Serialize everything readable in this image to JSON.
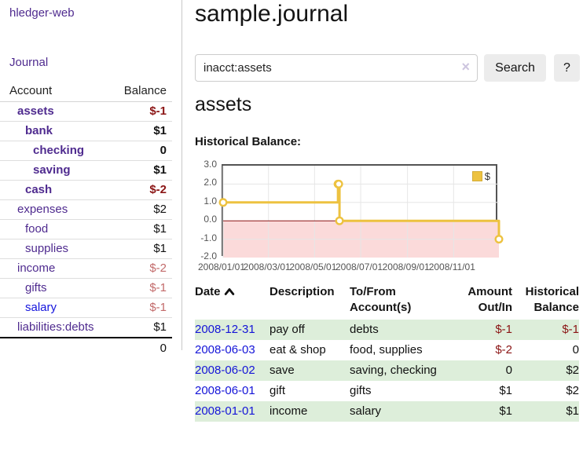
{
  "app": {
    "brand": "hledger-web",
    "nav_journal": "Journal"
  },
  "sidebar": {
    "header": {
      "account": "Account",
      "balance": "Balance"
    },
    "accounts": [
      {
        "name": "assets",
        "depth": 1,
        "bold": true,
        "balance": "$-1",
        "negative": true,
        "link": "purple"
      },
      {
        "name": "bank",
        "depth": 2,
        "bold": true,
        "balance": "$1",
        "negative": false,
        "link": "purple"
      },
      {
        "name": "checking",
        "depth": 3,
        "bold": true,
        "balance": "0",
        "negative": false,
        "link": "purple"
      },
      {
        "name": "saving",
        "depth": 3,
        "bold": true,
        "balance": "$1",
        "negative": false,
        "link": "purple"
      },
      {
        "name": "cash",
        "depth": 2,
        "bold": true,
        "balance": "$-2",
        "negative": true,
        "link": "purple"
      },
      {
        "name": "expenses",
        "depth": 1,
        "bold": false,
        "balance": "$2",
        "negative": false,
        "link": "purple"
      },
      {
        "name": "food",
        "depth": 2,
        "bold": false,
        "balance": "$1",
        "negative": false,
        "link": "purple"
      },
      {
        "name": "supplies",
        "depth": 2,
        "bold": false,
        "balance": "$1",
        "negative": false,
        "link": "purple"
      },
      {
        "name": "income",
        "depth": 1,
        "bold": false,
        "balance": "$-2",
        "negative": true,
        "link": "purple"
      },
      {
        "name": "gifts",
        "depth": 2,
        "bold": false,
        "balance": "$-1",
        "negative": true,
        "link": "purple"
      },
      {
        "name": "salary",
        "depth": 2,
        "bold": false,
        "balance": "$-1",
        "negative": true,
        "link": "blue"
      },
      {
        "name": "liabilities:debts",
        "depth": 1,
        "bold": false,
        "balance": "$1",
        "negative": false,
        "link": "purple"
      }
    ],
    "total": "0"
  },
  "main": {
    "title": "sample.journal",
    "search": {
      "value": "inacct:assets",
      "clear_icon": "×",
      "button": "Search",
      "help_button": "?"
    },
    "account_heading": "assets",
    "chart_heading": "Historical Balance:"
  },
  "chart_data": {
    "type": "line",
    "title": "Historical Balance:",
    "series": [
      {
        "name": "$",
        "color": "#edc240",
        "step": true,
        "points": [
          {
            "x": "2008-01-01",
            "y": 1
          },
          {
            "x": "2008-06-01",
            "y": 2
          },
          {
            "x": "2008-06-02",
            "y": 2
          },
          {
            "x": "2008-06-03",
            "y": 0
          },
          {
            "x": "2008-12-31",
            "y": -1
          }
        ]
      }
    ],
    "xlim": [
      "2008-01-01",
      "2008-12-31"
    ],
    "ylim": [
      -2,
      3
    ],
    "y_ticks": [
      {
        "v": 3,
        "label": "3.0"
      },
      {
        "v": 2,
        "label": "2.0"
      },
      {
        "v": 1,
        "label": "1.0"
      },
      {
        "v": 0,
        "label": "0.0"
      },
      {
        "v": -1,
        "label": "-1.0"
      },
      {
        "v": -2,
        "label": "-2.0"
      }
    ],
    "x_ticks": [
      {
        "v": "2008-01-01",
        "label": "2008/01/01"
      },
      {
        "v": "2008-03-01",
        "label": "2008/03/01"
      },
      {
        "v": "2008-05-01",
        "label": "2008/05/01"
      },
      {
        "v": "2008-07-01",
        "label": "2008/07/01"
      },
      {
        "v": "2008-09-01",
        "label": "2008/09/01"
      },
      {
        "v": "2008-11-01",
        "label": "2008/11/01"
      }
    ],
    "legend": {
      "label": "$",
      "position": "top-right"
    },
    "colors": {
      "line": "#edc240",
      "negative_region": "#fbdada",
      "zero_line": "#8b1414",
      "grid": "#e6e6e6",
      "border": "#545454"
    }
  },
  "transactions": {
    "headers": [
      "Date",
      "Description",
      "To/From Account(s)",
      "Amount Out/In",
      "Historical Balance"
    ],
    "rows": [
      {
        "date": "2008-12-31",
        "description": "pay off",
        "accounts": "debts",
        "amount": "$-1",
        "amount_neg": true,
        "balance": "$-1",
        "balance_neg": true,
        "shaded": true
      },
      {
        "date": "2008-06-03",
        "description": "eat & shop",
        "accounts": "food, supplies",
        "amount": "$-2",
        "amount_neg": true,
        "balance": "0",
        "balance_neg": false,
        "shaded": false
      },
      {
        "date": "2008-06-02",
        "description": "save",
        "accounts": "saving, checking",
        "amount": "0",
        "amount_neg": false,
        "balance": "$2",
        "balance_neg": false,
        "shaded": true
      },
      {
        "date": "2008-06-01",
        "description": "gift",
        "accounts": "gifts",
        "amount": "$1",
        "amount_neg": false,
        "balance": "$2",
        "balance_neg": false,
        "shaded": false
      },
      {
        "date": "2008-01-01",
        "description": "income",
        "accounts": "salary",
        "amount": "$1",
        "amount_neg": false,
        "balance": "$1",
        "balance_neg": false,
        "shaded": true
      }
    ]
  }
}
